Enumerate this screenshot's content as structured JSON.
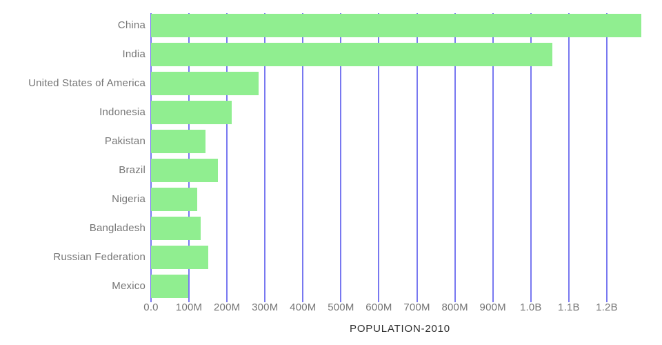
{
  "chart_data": {
    "type": "bar",
    "orientation": "horizontal",
    "title": "",
    "xlabel": "POPULATION-2010",
    "ylabel": "",
    "categories": [
      "China",
      "India",
      "United States of America",
      "Indonesia",
      "Pakistan",
      "Brazil",
      "Nigeria",
      "Bangladesh",
      "Russian Federation",
      "Mexico"
    ],
    "values_millions": [
      1290,
      1056,
      284,
      213,
      143,
      177,
      122,
      130,
      150,
      98
    ],
    "x_axis": {
      "tick_labels": [
        "0.0",
        "100M",
        "200M",
        "300M",
        "400M",
        "500M",
        "600M",
        "700M",
        "800M",
        "900M",
        "1.0B",
        "1.1B",
        "1.2B"
      ],
      "tick_values_millions": [
        0,
        100,
        200,
        300,
        400,
        500,
        600,
        700,
        800,
        900,
        1000,
        1100,
        1200
      ],
      "range_millions": [
        0,
        1310
      ]
    },
    "grid": true,
    "legend": "none",
    "colors": {
      "bar_fill": "#90ee90",
      "gridline": "#7878f0",
      "tick_label": "#757575",
      "category_label": "#757575",
      "axis_title": "#2e2e2e",
      "background": "#ffffff"
    }
  }
}
